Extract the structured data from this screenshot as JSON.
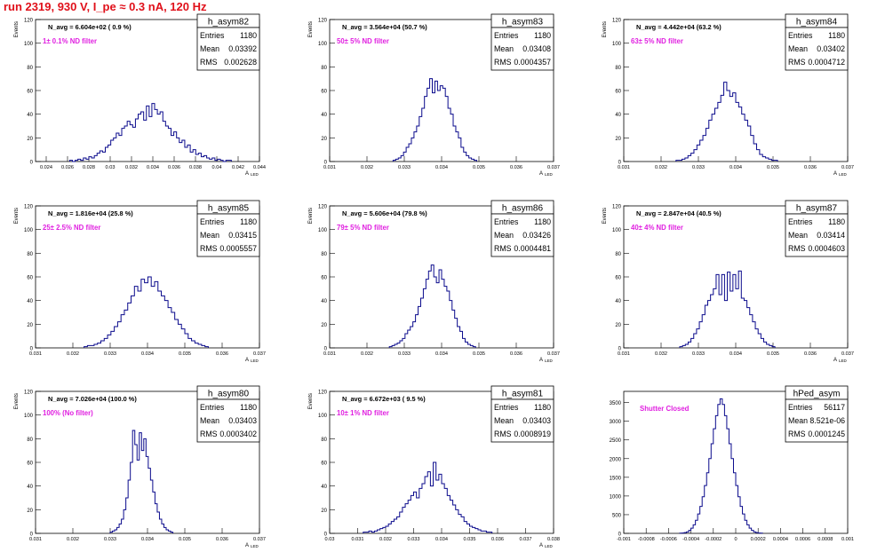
{
  "page_title": "run 2319,   930 V, I_pe ≈ 0.3 nA, 120 Hz",
  "stats_labels": {
    "entries": "Entries",
    "mean": "Mean",
    "rms": "RMS"
  },
  "colors": {
    "histogram": "#0a0a8c",
    "annotation": "#e020e0",
    "title": "#e0101a",
    "grid": "#bbbbbb"
  },
  "chart_data": [
    {
      "type": "bar",
      "title": "h_asym82",
      "navg": "N_avg = 6.604e+02 ( 0.9 %)",
      "annotation": "1± 0.1% ND filter",
      "stats": {
        "entries": "1180",
        "mean": "0.03392",
        "rms": "0.002628"
      },
      "ylabel": "Events",
      "xlabel": "A",
      "xlabel_sub": "LED",
      "xlim": [
        0.023,
        0.044
      ],
      "ylim": [
        0,
        120
      ],
      "xticks": [
        0.024,
        0.026,
        0.028,
        0.03,
        0.032,
        0.034,
        0.036,
        0.038,
        0.04,
        0.042,
        0.044
      ],
      "xtick_labels": [
        "0.024",
        "0.026",
        "0.028",
        "0.03",
        "0.032",
        "0.034",
        "0.036",
        "0.038",
        "0.04",
        "0.042",
        "0.044"
      ],
      "yticks": [
        0,
        20,
        40,
        60,
        80,
        100,
        120
      ],
      "x_start": 0.0262,
      "bin_width": 0.000257,
      "values": [
        1,
        0,
        1,
        2,
        1,
        3,
        2,
        4,
        3,
        5,
        7,
        9,
        8,
        12,
        14,
        18,
        20,
        24,
        22,
        28,
        30,
        34,
        31,
        29,
        36,
        40,
        42,
        35,
        47,
        38,
        49,
        44,
        40,
        42,
        34,
        30,
        28,
        22,
        25,
        20,
        16,
        18,
        12,
        14,
        8,
        10,
        6,
        7,
        4,
        5,
        3,
        2,
        3,
        1,
        2,
        1,
        0,
        1,
        1
      ]
    },
    {
      "type": "bar",
      "title": "h_asym83",
      "navg": "N_avg = 3.564e+04 (50.7 %)",
      "annotation": "50± 5% ND filter",
      "stats": {
        "entries": "1180",
        "mean": "0.03408",
        "rms": "0.0004357"
      },
      "ylabel": "Events",
      "xlabel": "A",
      "xlabel_sub": "LED",
      "xlim": [
        0.031,
        0.037
      ],
      "ylim": [
        0,
        120
      ],
      "xticks": [
        0.031,
        0.032,
        0.033,
        0.034,
        0.035,
        0.036,
        0.037
      ],
      "xtick_labels": [
        "0.031",
        "0.032",
        "0.033",
        "0.034",
        "0.035",
        "0.036",
        "0.037"
      ],
      "yticks": [
        0,
        20,
        40,
        60,
        80,
        100,
        120
      ],
      "x_start": 0.0327,
      "bin_width": 7e-05,
      "values": [
        1,
        2,
        3,
        5,
        8,
        12,
        15,
        20,
        25,
        30,
        38,
        45,
        55,
        62,
        70,
        58,
        68,
        60,
        64,
        62,
        55,
        45,
        40,
        30,
        25,
        20,
        12,
        8,
        5,
        3,
        2,
        1
      ]
    },
    {
      "type": "bar",
      "title": "h_asym84",
      "navg": "N_avg = 4.442e+04 (63.2 %)",
      "annotation": "63± 5% ND filter",
      "stats": {
        "entries": "1180",
        "mean": "0.03402",
        "rms": "0.0004712"
      },
      "ylabel": "Events",
      "xlabel": "A",
      "xlabel_sub": "LED",
      "xlim": [
        0.031,
        0.037
      ],
      "ylim": [
        0,
        120
      ],
      "xticks": [
        0.031,
        0.032,
        0.033,
        0.034,
        0.035,
        0.036,
        0.037
      ],
      "xtick_labels": [
        "0.031",
        "0.032",
        "0.033",
        "0.034",
        "0.035",
        "0.036",
        "0.037"
      ],
      "yticks": [
        0,
        20,
        40,
        60,
        80,
        100,
        120
      ],
      "x_start": 0.0324,
      "bin_width": 8e-05,
      "values": [
        1,
        1,
        2,
        3,
        5,
        7,
        10,
        14,
        18,
        22,
        28,
        35,
        40,
        45,
        50,
        56,
        67,
        60,
        55,
        58,
        50,
        46,
        40,
        35,
        30,
        22,
        15,
        10,
        6,
        4,
        3,
        2,
        1,
        1
      ]
    },
    {
      "type": "bar",
      "title": "h_asym85",
      "navg": "N_avg = 1.816e+04 (25.8 %)",
      "annotation": "25± 2.5% ND filter",
      "stats": {
        "entries": "1180",
        "mean": "0.03415",
        "rms": "0.0005557"
      },
      "ylabel": "Events",
      "xlabel": "A",
      "xlabel_sub": "LED",
      "xlim": [
        0.031,
        0.037
      ],
      "ylim": [
        0,
        120
      ],
      "xticks": [
        0.031,
        0.032,
        0.033,
        0.034,
        0.035,
        0.036,
        0.037
      ],
      "xtick_labels": [
        "0.031",
        "0.032",
        "0.033",
        "0.034",
        "0.035",
        "0.036",
        "0.037"
      ],
      "yticks": [
        0,
        20,
        40,
        60,
        80,
        100,
        120
      ],
      "x_start": 0.0323,
      "bin_width": 9e-05,
      "values": [
        1,
        2,
        2,
        3,
        4,
        6,
        8,
        11,
        14,
        18,
        22,
        28,
        32,
        38,
        44,
        52,
        48,
        58,
        55,
        60,
        52,
        56,
        48,
        44,
        40,
        34,
        30,
        24,
        20,
        16,
        12,
        8,
        6,
        4,
        3,
        2,
        1
      ]
    },
    {
      "type": "bar",
      "title": "h_asym86",
      "navg": "N_avg = 5.606e+04 (79.8 %)",
      "annotation": "79± 5% ND filter",
      "stats": {
        "entries": "1180",
        "mean": "0.03426",
        "rms": "0.0004481"
      },
      "ylabel": "Events",
      "xlabel": "A",
      "xlabel_sub": "LED",
      "xlim": [
        0.031,
        0.037
      ],
      "ylim": [
        0,
        120
      ],
      "xticks": [
        0.031,
        0.032,
        0.033,
        0.034,
        0.035,
        0.036,
        0.037
      ],
      "xtick_labels": [
        "0.031",
        "0.032",
        "0.033",
        "0.034",
        "0.035",
        "0.036",
        "0.037"
      ],
      "yticks": [
        0,
        20,
        40,
        60,
        80,
        100,
        120
      ],
      "x_start": 0.0326,
      "bin_width": 7e-05,
      "values": [
        1,
        2,
        3,
        4,
        6,
        8,
        12,
        15,
        18,
        22,
        28,
        35,
        42,
        50,
        58,
        65,
        70,
        60,
        55,
        66,
        58,
        52,
        48,
        40,
        32,
        25,
        18,
        14,
        8,
        5,
        3,
        2,
        1
      ]
    },
    {
      "type": "bar",
      "title": "h_asym87",
      "navg": "N_avg = 2.847e+04 (40.5 %)",
      "annotation": "40± 4% ND filter",
      "stats": {
        "entries": "1180",
        "mean": "0.03414",
        "rms": "0.0004603"
      },
      "ylabel": "Events",
      "xlabel": "A",
      "xlabel_sub": "LED",
      "xlim": [
        0.031,
        0.037
      ],
      "ylim": [
        0,
        120
      ],
      "xticks": [
        0.031,
        0.032,
        0.033,
        0.034,
        0.035,
        0.036,
        0.037
      ],
      "xtick_labels": [
        "0.031",
        "0.032",
        "0.033",
        "0.034",
        "0.035",
        "0.036",
        "0.037"
      ],
      "yticks": [
        0,
        20,
        40,
        60,
        80,
        100,
        120
      ],
      "x_start": 0.0325,
      "bin_width": 7.5e-05,
      "values": [
        1,
        2,
        3,
        5,
        8,
        12,
        16,
        22,
        28,
        36,
        40,
        45,
        50,
        62,
        45,
        62,
        40,
        64,
        48,
        62,
        50,
        65,
        42,
        40,
        34,
        28,
        22,
        16,
        12,
        8,
        5,
        3,
        2,
        1
      ]
    },
    {
      "type": "bar",
      "title": "h_asym80",
      "navg": "N_avg = 7.026e+04 (100.0 %)",
      "annotation": "100% (No filter)",
      "stats": {
        "entries": "1180",
        "mean": "0.03403",
        "rms": "0.0003402"
      },
      "ylabel": "Events",
      "xlabel": "A",
      "xlabel_sub": "LED",
      "xlim": [
        0.031,
        0.037
      ],
      "ylim": [
        0,
        120
      ],
      "xticks": [
        0.031,
        0.032,
        0.033,
        0.034,
        0.035,
        0.036,
        0.037
      ],
      "xtick_labels": [
        "0.031",
        "0.032",
        "0.033",
        "0.034",
        "0.035",
        "0.036",
        "0.037"
      ],
      "yticks": [
        0,
        20,
        40,
        60,
        80,
        100,
        120
      ],
      "x_start": 0.033,
      "bin_width": 6e-05,
      "values": [
        1,
        2,
        3,
        5,
        8,
        12,
        20,
        30,
        45,
        60,
        87,
        75,
        62,
        85,
        70,
        80,
        65,
        55,
        45,
        35,
        25,
        18,
        12,
        8,
        5,
        3,
        2,
        1
      ]
    },
    {
      "type": "bar",
      "title": "h_asym81",
      "navg": "N_avg = 6.672e+03 ( 9.5 %)",
      "annotation": "10± 1% ND filter",
      "stats": {
        "entries": "1180",
        "mean": "0.03403",
        "rms": "0.0008919"
      },
      "ylabel": "Events",
      "xlabel": "A",
      "xlabel_sub": "LED",
      "xlim": [
        0.03,
        0.038
      ],
      "ylim": [
        0,
        120
      ],
      "xticks": [
        0.03,
        0.031,
        0.032,
        0.033,
        0.034,
        0.035,
        0.036,
        0.037,
        0.038
      ],
      "xtick_labels": [
        "0.03",
        "0.031",
        "0.032",
        "0.033",
        "0.034",
        "0.035",
        "0.036",
        "0.037",
        "0.038"
      ],
      "yticks": [
        0,
        20,
        40,
        60,
        80,
        100,
        120
      ],
      "x_start": 0.0312,
      "bin_width": 0.0001,
      "values": [
        1,
        1,
        2,
        1,
        2,
        3,
        4,
        5,
        6,
        8,
        10,
        12,
        14,
        18,
        22,
        25,
        28,
        32,
        35,
        30,
        38,
        42,
        48,
        52,
        40,
        60,
        45,
        50,
        42,
        38,
        32,
        28,
        24,
        20,
        16,
        14,
        10,
        8,
        6,
        5,
        4,
        3,
        2,
        2,
        1,
        1
      ]
    },
    {
      "type": "bar",
      "title": "hPed_asym",
      "navg": "",
      "annotation": "Shutter Closed",
      "stats": {
        "entries": "56117",
        "mean": "8.521e-06",
        "rms": "0.0001245"
      },
      "ylabel": "",
      "xlabel": "",
      "xlabel_sub": "",
      "xlim": [
        -0.001,
        0.001
      ],
      "ylim": [
        0,
        3800
      ],
      "xticks": [
        -0.001,
        -0.0008,
        -0.0006,
        -0.0004,
        -0.0002,
        0,
        0.0002,
        0.0004,
        0.0006,
        0.0008,
        0.001
      ],
      "xtick_labels": [
        "-0.001",
        "-0.0008",
        "-0.0006",
        "-0.0004",
        "-0.0002",
        "0",
        "0.0002",
        "0.0004",
        "0.0006",
        "0.0008",
        "0.001"
      ],
      "yticks": [
        0,
        500,
        1000,
        1500,
        2000,
        2500,
        3000,
        3500
      ],
      "x_start": -0.0005,
      "bin_width": 2e-05,
      "values": [
        5,
        10,
        20,
        40,
        80,
        140,
        230,
        350,
        520,
        720,
        980,
        1280,
        1620,
        2000,
        2400,
        2800,
        3150,
        3450,
        3600,
        3450,
        3150,
        2800,
        2400,
        2000,
        1620,
        1280,
        980,
        720,
        520,
        350,
        230,
        140,
        80,
        40,
        20,
        10,
        5
      ]
    }
  ]
}
